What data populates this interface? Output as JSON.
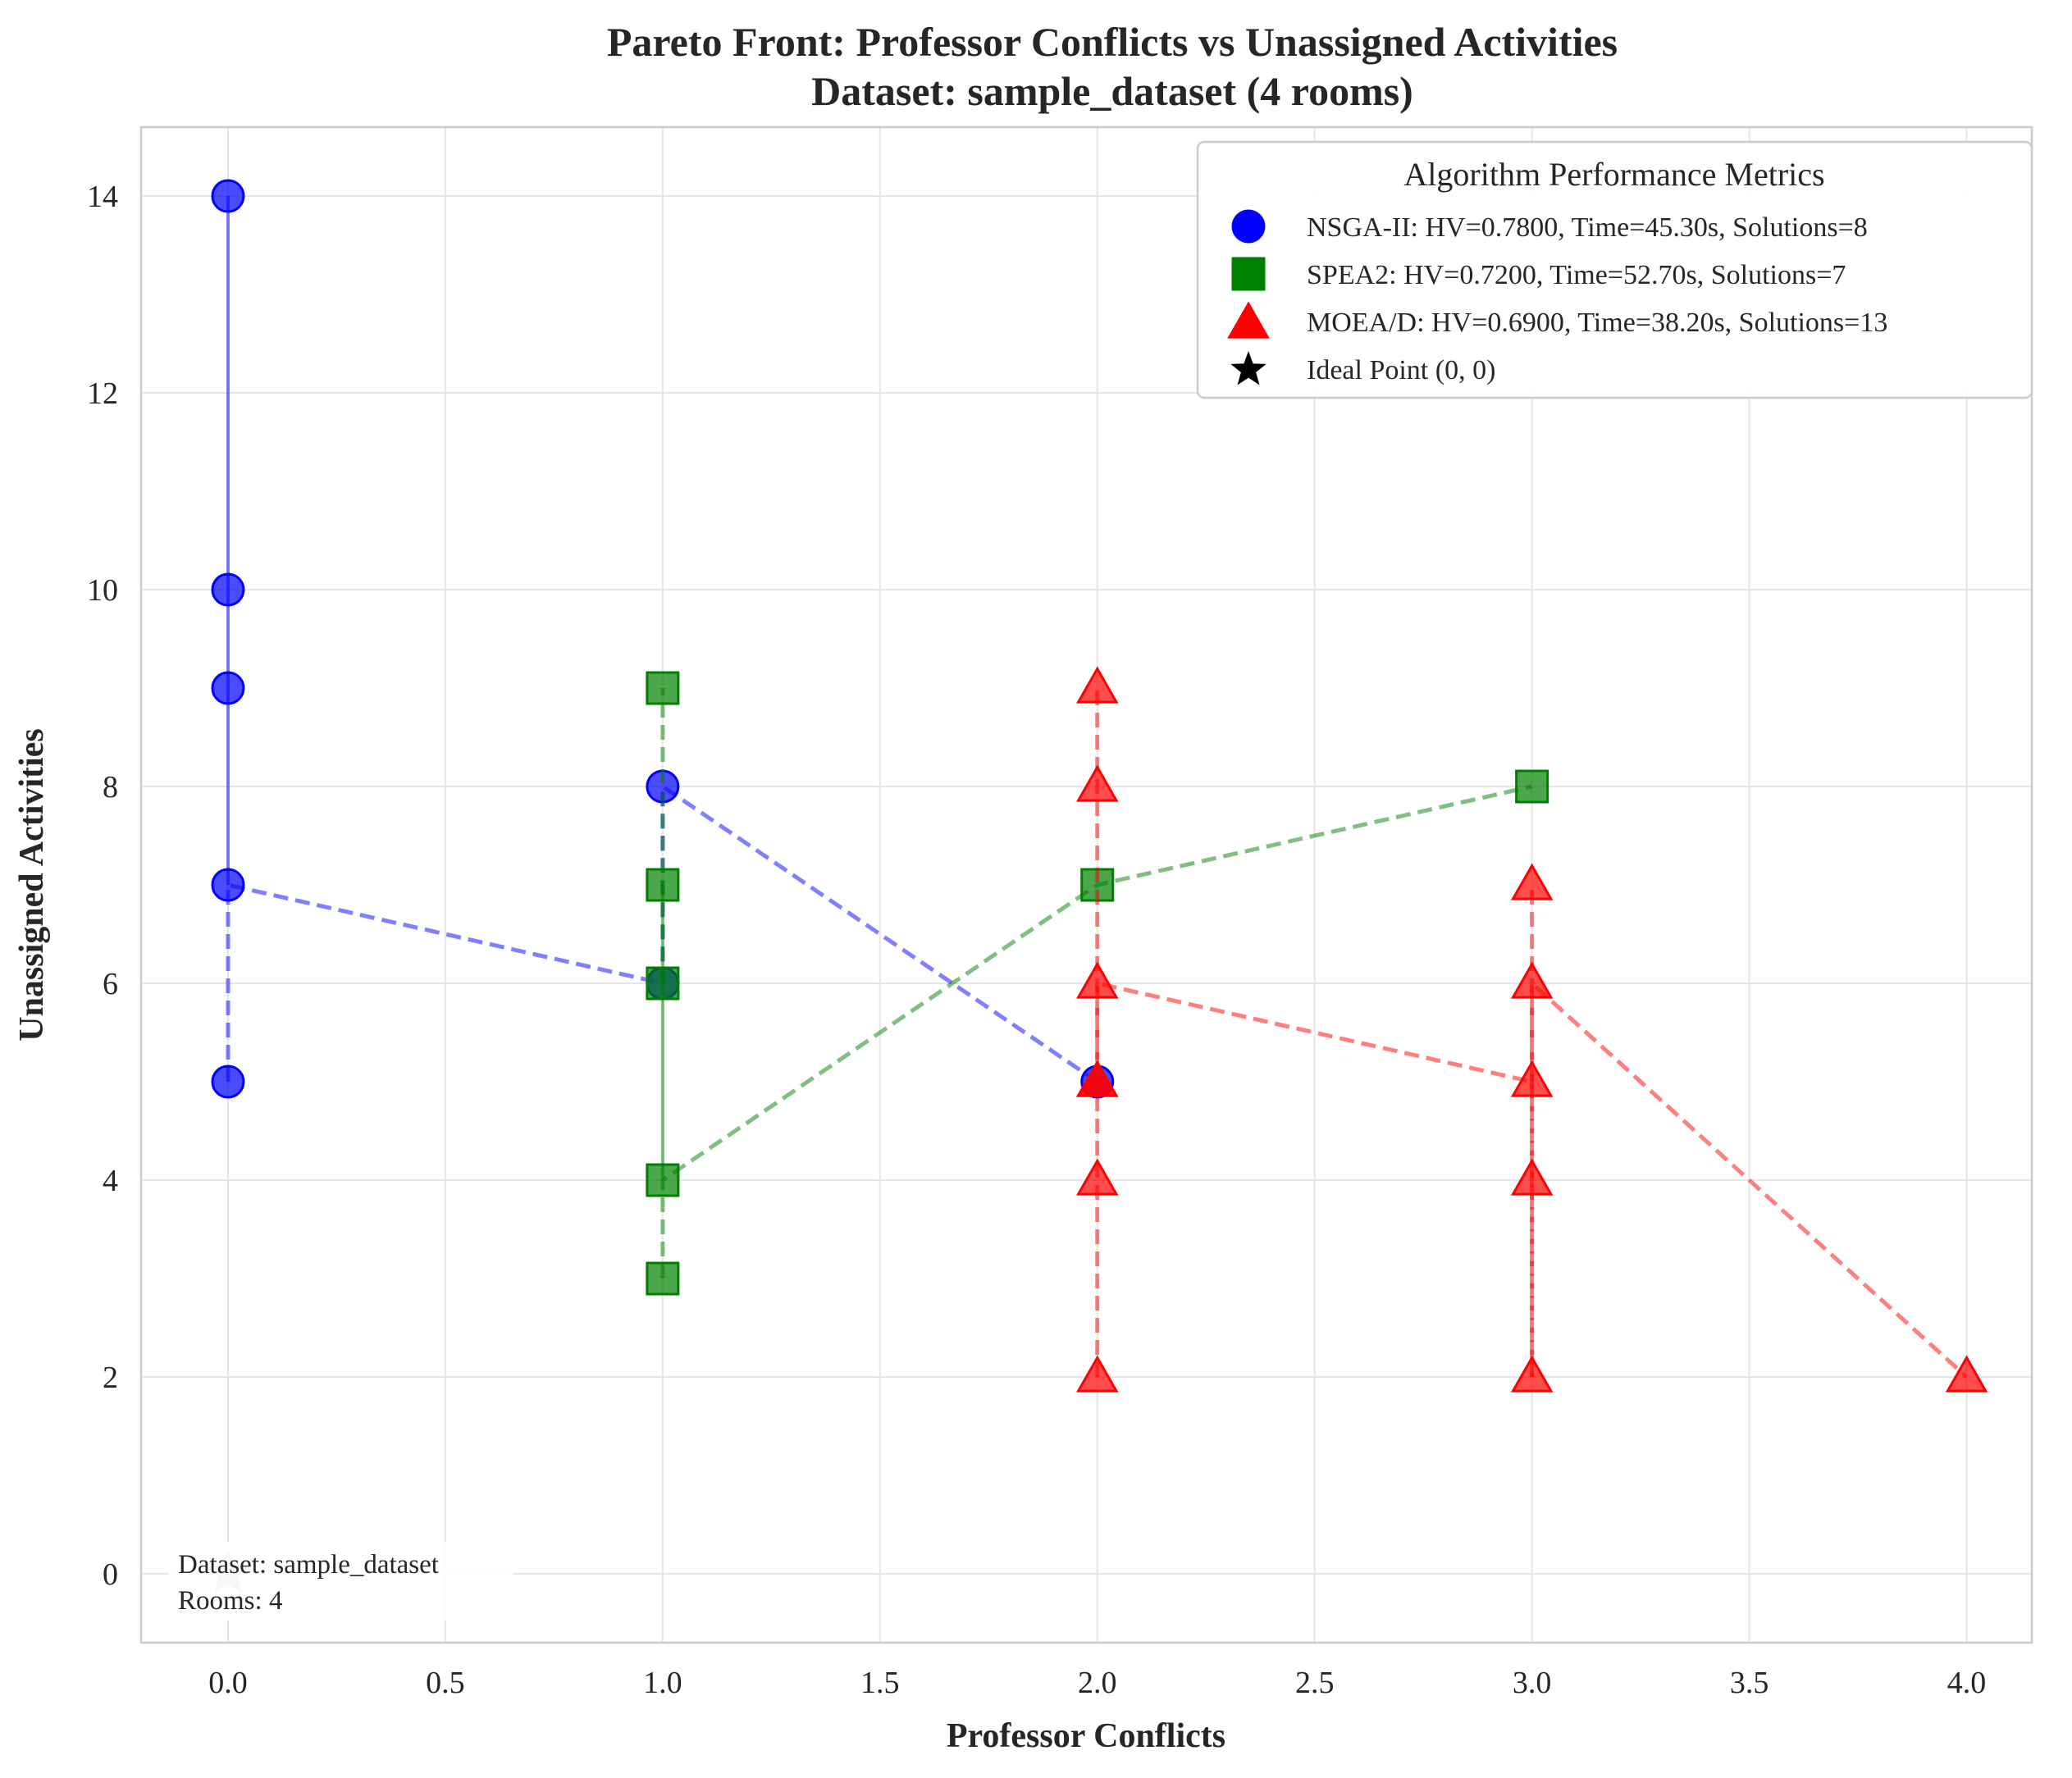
{
  "chart_data": {
    "type": "scatter",
    "title_lines": [
      "Pareto Front: Professor Conflicts vs Unassigned Activities",
      "Dataset: sample_dataset (4 rooms)"
    ],
    "xlabel": "Professor Conflicts",
    "ylabel": "Unassigned Activities",
    "xlim": [
      -0.2,
      4.15
    ],
    "ylim": [
      -0.7,
      14.7
    ],
    "xticks": [
      0.0,
      0.5,
      1.0,
      1.5,
      2.0,
      2.5,
      3.0,
      3.5,
      4.0
    ],
    "xtick_labels": [
      "0.0",
      "0.5",
      "1.0",
      "1.5",
      "2.0",
      "2.5",
      "3.0",
      "3.5",
      "4.0"
    ],
    "yticks": [
      0,
      2,
      4,
      6,
      8,
      10,
      12,
      14
    ],
    "ytick_labels": [
      "0",
      "2",
      "4",
      "6",
      "8",
      "10",
      "12",
      "14"
    ],
    "grid": true,
    "legend": {
      "title": "Algorithm Performance Metrics",
      "placement": "top-right",
      "entries": [
        "NSGA-II: HV=0.7800, Time=45.30s, Solutions=8",
        "SPEA2: HV=0.7200, Time=52.70s, Solutions=7",
        "MOEA/D: HV=0.6900, Time=38.20s, Solutions=13",
        "Ideal Point (0, 0)"
      ]
    },
    "series": [
      {
        "name": "NSGA-II",
        "color": "#0000ff",
        "marker": "circle",
        "points": [
          [
            0,
            14
          ],
          [
            0,
            10
          ],
          [
            0,
            9
          ],
          [
            0,
            7
          ],
          [
            0,
            5
          ],
          [
            1,
            8
          ],
          [
            1,
            6
          ],
          [
            2,
            5
          ]
        ],
        "front_path": [
          [
            0,
            5
          ],
          [
            0,
            7
          ],
          [
            1,
            6
          ],
          [
            1,
            8
          ],
          [
            2,
            5
          ]
        ],
        "solid_path": [
          [
            0,
            7
          ],
          [
            0,
            9
          ],
          [
            0,
            10
          ],
          [
            0,
            14
          ]
        ]
      },
      {
        "name": "SPEA2",
        "color": "#008000",
        "marker": "square",
        "points": [
          [
            1,
            9
          ],
          [
            1,
            7
          ],
          [
            1,
            6
          ],
          [
            1,
            4
          ],
          [
            1,
            3
          ],
          [
            2,
            7
          ],
          [
            3,
            8
          ]
        ],
        "front_path": [
          [
            1,
            3
          ],
          [
            1,
            4
          ],
          [
            2,
            7
          ],
          [
            3,
            8
          ]
        ],
        "front_path_2": [
          [
            1,
            6
          ],
          [
            1,
            7
          ],
          [
            1,
            9
          ]
        ],
        "solid_path": [
          [
            1,
            4
          ],
          [
            1,
            6
          ],
          [
            1,
            7
          ]
        ]
      },
      {
        "name": "MOEA/D",
        "color": "#ff0000",
        "marker": "triangle",
        "points": [
          [
            2,
            9
          ],
          [
            2,
            8
          ],
          [
            2,
            6
          ],
          [
            2,
            5
          ],
          [
            2,
            4
          ],
          [
            2,
            2
          ],
          [
            3,
            7
          ],
          [
            3,
            6
          ],
          [
            3,
            5
          ],
          [
            3,
            4
          ],
          [
            3,
            2
          ],
          [
            4,
            2
          ],
          [
            2,
            5
          ]
        ],
        "front_path": [
          [
            2,
            2
          ],
          [
            2,
            4
          ],
          [
            2,
            5
          ],
          [
            2,
            6
          ],
          [
            3,
            5
          ],
          [
            3,
            4
          ],
          [
            3,
            2
          ]
        ],
        "front_path_2": [
          [
            3,
            2
          ],
          [
            3,
            4
          ],
          [
            3,
            6
          ],
          [
            4,
            2
          ]
        ],
        "front_path_3": [
          [
            2,
            5
          ],
          [
            2,
            6
          ],
          [
            2,
            8
          ],
          [
            2,
            9
          ]
        ],
        "front_path_4": [
          [
            3,
            5
          ],
          [
            3,
            6
          ],
          [
            3,
            7
          ]
        ]
      }
    ],
    "ideal_point": {
      "x": 0,
      "y": 0,
      "marker": "star",
      "color": "#c0c0c0"
    },
    "annotation_lines": [
      "Dataset: sample_dataset",
      "Rooms: 4"
    ]
  }
}
